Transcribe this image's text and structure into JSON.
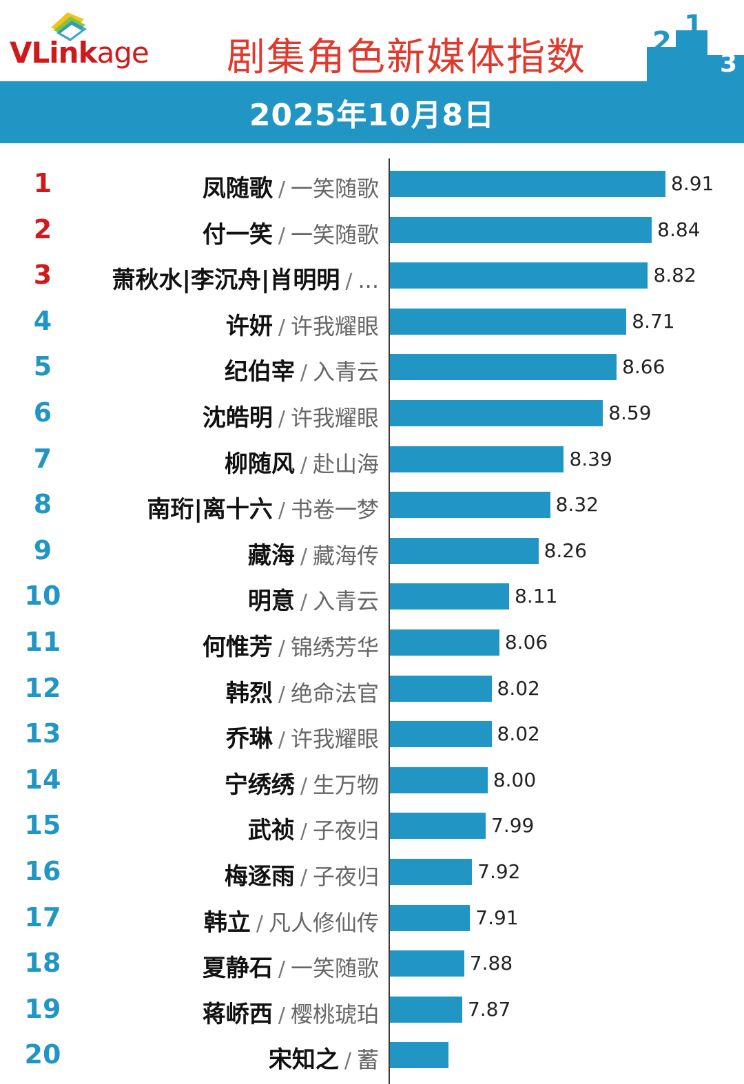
{
  "header": {
    "logo_text": "VLinkage",
    "title": "剧集角色新媒体指数",
    "date": "2025年10月8日"
  },
  "colors": {
    "accent": "#2196c4",
    "top_rank": "#d0191b",
    "title": "#e03a2e"
  },
  "chart_data": {
    "type": "bar",
    "orientation": "horizontal",
    "title": "剧集角色新媒体指数",
    "subtitle": "2025年10月8日",
    "grid": false,
    "categories": [
      {
        "rank": "1",
        "name": "凤随歌",
        "drama": "一笑随歌"
      },
      {
        "rank": "2",
        "name": "付一笑",
        "drama": "一笑随歌"
      },
      {
        "rank": "3",
        "name": "萧秋水|李沉舟|肖明明",
        "drama": "..."
      },
      {
        "rank": "4",
        "name": "许妍",
        "drama": "许我耀眼"
      },
      {
        "rank": "5",
        "name": "纪伯宰",
        "drama": "入青云"
      },
      {
        "rank": "6",
        "name": "沈皓明",
        "drama": "许我耀眼"
      },
      {
        "rank": "7",
        "name": "柳随风",
        "drama": "赴山海"
      },
      {
        "rank": "8",
        "name": "南珩|离十六",
        "drama": "书卷一梦"
      },
      {
        "rank": "9",
        "name": "藏海",
        "drama": "藏海传"
      },
      {
        "rank": "10",
        "name": "明意",
        "drama": "入青云"
      },
      {
        "rank": "11",
        "name": "何惟芳",
        "drama": "锦绣芳华"
      },
      {
        "rank": "12",
        "name": "韩烈",
        "drama": "绝命法官"
      },
      {
        "rank": "13",
        "name": "乔琳",
        "drama": "许我耀眼"
      },
      {
        "rank": "14",
        "name": "宁绣绣",
        "drama": "生万物"
      },
      {
        "rank": "15",
        "name": "武祯",
        "drama": "子夜归"
      },
      {
        "rank": "16",
        "name": "梅逐雨",
        "drama": "子夜归"
      },
      {
        "rank": "17",
        "name": "韩立",
        "drama": "凡人修仙传"
      },
      {
        "rank": "18",
        "name": "夏静石",
        "drama": "一笑随歌"
      },
      {
        "rank": "19",
        "name": "蒋峤西",
        "drama": "樱桃琥珀"
      },
      {
        "rank": "20",
        "name": "宋知之",
        "drama": "蓄"
      }
    ],
    "values": [
      "8.91",
      "8.84",
      "8.82",
      "8.71",
      "8.66",
      "8.59",
      "8.39",
      "8.32",
      "8.26",
      "8.11",
      "8.06",
      "8.02",
      "8.02",
      "8.00",
      "7.99",
      "7.92",
      "7.91",
      "7.88",
      "7.87",
      ""
    ],
    "last_bar_value_estimate": 7.8,
    "separator": "/"
  }
}
